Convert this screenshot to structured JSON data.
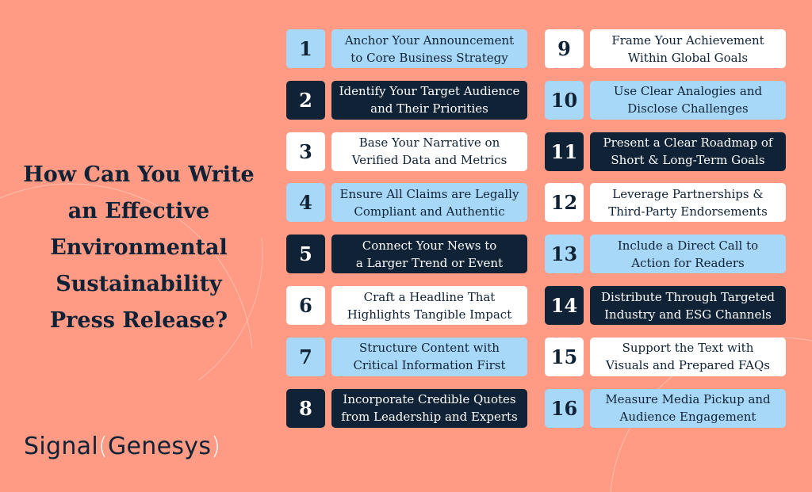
{
  "title": [
    "How Can You Write",
    "an Effective",
    "Environmental",
    "Sustainability",
    "Press Release?"
  ],
  "logo": {
    "word1": "Signal",
    "paren_open": "(",
    "word2": "Genesys",
    "paren_close": ")"
  },
  "colors": {
    "background": "#FF9A84",
    "blue": "#A8D8F8",
    "navy": "#0F2236",
    "white": "#FFFFFF"
  },
  "items": [
    {
      "n": "1",
      "l1": "Anchor Your Announcement",
      "l2": "to Core Business Strategy",
      "theme": "blue"
    },
    {
      "n": "2",
      "l1": "Identify Your Target Audience",
      "l2": "and Their Priorities",
      "theme": "navy"
    },
    {
      "n": "3",
      "l1": "Base Your Narrative on",
      "l2": "Verified Data and Metrics",
      "theme": "white"
    },
    {
      "n": "4",
      "l1": "Ensure All Claims are Legally",
      "l2": "Compliant and Authentic",
      "theme": "blue"
    },
    {
      "n": "5",
      "l1": "Connect Your News to",
      "l2": "a Larger Trend or Event",
      "theme": "navy"
    },
    {
      "n": "6",
      "l1": "Craft a Headline That",
      "l2": "Highlights Tangible Impact",
      "theme": "white"
    },
    {
      "n": "7",
      "l1": "Structure Content with",
      "l2": "Critical Information First",
      "theme": "blue"
    },
    {
      "n": "8",
      "l1": "Incorporate Credible Quotes",
      "l2": "from Leadership and Experts",
      "theme": "navy"
    },
    {
      "n": "9",
      "l1": "Frame Your Achievement",
      "l2": "Within Global Goals",
      "theme": "white"
    },
    {
      "n": "10",
      "l1": "Use Clear Analogies and",
      "l2": "Disclose Challenges",
      "theme": "blue"
    },
    {
      "n": "11",
      "l1": "Present a Clear Roadmap of",
      "l2": "Short & Long-Term Goals",
      "theme": "navy"
    },
    {
      "n": "12",
      "l1": "Leverage Partnerships &",
      "l2": "Third-Party Endorsements",
      "theme": "white"
    },
    {
      "n": "13",
      "l1": "Include a Direct Call to",
      "l2": "Action for Readers",
      "theme": "blue"
    },
    {
      "n": "14",
      "l1": "Distribute Through Targeted",
      "l2": "Industry and ESG Channels",
      "theme": "navy"
    },
    {
      "n": "15",
      "l1": "Support the Text with",
      "l2": "Visuals and Prepared FAQs",
      "theme": "white"
    },
    {
      "n": "16",
      "l1": "Measure Media Pickup and",
      "l2": "Audience Engagement",
      "theme": "blue"
    }
  ]
}
